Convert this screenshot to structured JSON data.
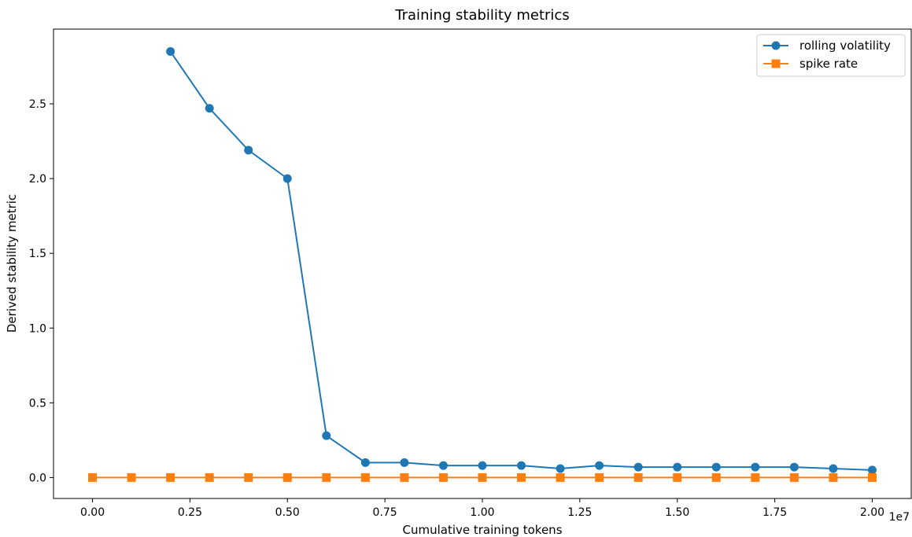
{
  "chart_data": {
    "type": "line",
    "title": "Training stability metrics",
    "xlabel": "Cumulative training tokens",
    "ylabel": "Derived stability metric",
    "x_offset_label": "1e7",
    "xlim": [
      -0.1,
      2.1
    ],
    "ylim": [
      -0.14,
      3.0
    ],
    "xticks": [
      0.0,
      0.25,
      0.5,
      0.75,
      1.0,
      1.25,
      1.5,
      1.75,
      2.0
    ],
    "xtick_labels": [
      "0.00",
      "0.25",
      "0.50",
      "0.75",
      "1.00",
      "1.25",
      "1.50",
      "1.75",
      "2.00"
    ],
    "yticks": [
      0.0,
      0.5,
      1.0,
      1.5,
      2.0,
      2.5
    ],
    "ytick_labels": [
      "0.0",
      "0.5",
      "1.0",
      "1.5",
      "2.0",
      "2.5"
    ],
    "grid": false,
    "legend": "top-right",
    "series": [
      {
        "name": "rolling volatility",
        "color": "#1f77b4",
        "marker": "circle",
        "x": [
          0.2,
          0.3,
          0.4,
          0.5,
          0.6,
          0.7,
          0.8,
          0.9,
          1.0,
          1.1,
          1.2,
          1.3,
          1.4,
          1.5,
          1.6,
          1.7,
          1.8,
          1.9,
          2.0
        ],
        "y": [
          2.85,
          2.47,
          2.19,
          2.0,
          0.28,
          0.1,
          0.1,
          0.08,
          0.08,
          0.08,
          0.06,
          0.08,
          0.07,
          0.07,
          0.07,
          0.07,
          0.07,
          0.06,
          0.05
        ]
      },
      {
        "name": "spike rate",
        "color": "#ff7f0e",
        "marker": "square",
        "x": [
          0.0,
          0.1,
          0.2,
          0.3,
          0.4,
          0.5,
          0.6,
          0.7,
          0.8,
          0.9,
          1.0,
          1.1,
          1.2,
          1.3,
          1.4,
          1.5,
          1.6,
          1.7,
          1.8,
          1.9,
          2.0
        ],
        "y": [
          0,
          0,
          0,
          0,
          0,
          0,
          0,
          0,
          0,
          0,
          0,
          0,
          0,
          0,
          0,
          0,
          0,
          0,
          0,
          0,
          0
        ]
      }
    ]
  }
}
